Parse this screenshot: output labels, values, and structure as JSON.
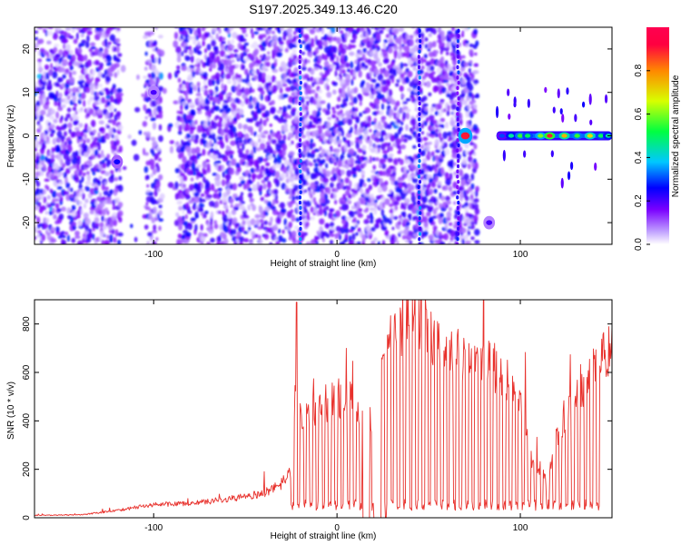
{
  "title": "S197.2025.349.13.46.C20",
  "colors": {
    "snr_line": "#e8312c",
    "frame": "#000000",
    "background": "#ffffff"
  },
  "chart_data": [
    {
      "type": "heatmap",
      "name": "spectrogram",
      "xlabel": "Height of straight line (km)",
      "ylabel": "Frequency (Hz)",
      "xlim": [
        -165,
        150
      ],
      "ylim": [
        -25,
        25
      ],
      "xticks": [
        -100,
        0,
        100
      ],
      "xtick_labels": [
        "-100",
        "0",
        "100"
      ],
      "yticks": [
        -20,
        -10,
        0,
        10,
        20
      ],
      "ytick_labels": [
        "-20",
        "-10",
        "0",
        "10",
        "20"
      ],
      "colorbar": {
        "label": "Normalized spectral amplitude",
        "range": [
          0,
          1
        ],
        "ticks": [
          0.0,
          0.2,
          0.4,
          0.6,
          0.8
        ],
        "tick_labels": [
          "0.0",
          "0.2",
          "0.4",
          "0.6",
          "0.8"
        ],
        "colormap": [
          "#ffffff",
          "#7a00ff",
          "#0000ff",
          "#00c8ff",
          "#00ff40",
          "#d8ff00",
          "#ff8800",
          "#ff0040"
        ]
      },
      "features": [
        {
          "kind": "noise",
          "x_range": [
            -165,
            75
          ],
          "f_range": [
            -25,
            25
          ],
          "level": 0.15
        },
        {
          "kind": "gap",
          "x_range": [
            -118,
            -105
          ]
        },
        {
          "kind": "gap",
          "x_range": [
            -96,
            -88
          ]
        },
        {
          "kind": "gap",
          "x_range": [
            78,
            88
          ]
        },
        {
          "kind": "vertical_streak",
          "x": -20,
          "level": 0.3
        },
        {
          "kind": "vertical_streak",
          "x": 45,
          "level": 0.3
        },
        {
          "kind": "vertical_streak",
          "x": 66,
          "level": 0.25
        },
        {
          "kind": "blob",
          "x": -120,
          "f": -6,
          "level": 0.25
        },
        {
          "kind": "blob",
          "x": -100,
          "f": 10,
          "level": 0.2
        },
        {
          "kind": "blob",
          "x": 70,
          "f": 0,
          "level": 0.9
        },
        {
          "kind": "blob",
          "x": 83,
          "f": -20,
          "level": 0.2
        },
        {
          "kind": "carrier_band",
          "x_range": [
            87,
            150
          ],
          "f": 0,
          "peaks": [
            {
              "x": 90,
              "level": 0.3
            },
            {
              "x": 95,
              "level": 0.45
            },
            {
              "x": 100,
              "level": 0.55
            },
            {
              "x": 104,
              "level": 0.5
            },
            {
              "x": 111,
              "level": 0.6
            },
            {
              "x": 116,
              "level": 0.9
            },
            {
              "x": 124,
              "level": 0.75
            },
            {
              "x": 131,
              "level": 0.55
            },
            {
              "x": 138,
              "level": 0.7
            },
            {
              "x": 144,
              "level": 0.5
            },
            {
              "x": 148,
              "level": 0.45
            }
          ]
        }
      ]
    },
    {
      "type": "line",
      "name": "snr",
      "xlabel": "Height of straight line (km)",
      "ylabel": "SNR (10 * v/v)",
      "xlim": [
        -165,
        150
      ],
      "ylim": [
        0,
        900
      ],
      "xticks": [
        -100,
        0,
        100
      ],
      "xtick_labels": [
        "-100",
        "0",
        "100"
      ],
      "yticks": [
        0,
        200,
        400,
        600,
        800
      ],
      "ytick_labels": [
        "0",
        "200",
        "400",
        "600",
        "800"
      ],
      "baseline": {
        "x": [
          -165,
          -140,
          -120,
          -100,
          -80,
          -60,
          -40,
          -30,
          -25,
          -22,
          -20,
          -10,
          0,
          10,
          15,
          20,
          25,
          30,
          40,
          50,
          60,
          70,
          80,
          90,
          100,
          105,
          110,
          115,
          120,
          130,
          140,
          150
        ],
        "y": [
          10,
          12,
          30,
          55,
          60,
          75,
          100,
          140,
          200,
          700,
          400,
          450,
          500,
          470,
          450,
          420,
          600,
          750,
          840,
          780,
          700,
          650,
          640,
          600,
          520,
          250,
          210,
          150,
          350,
          520,
          600,
          720
        ]
      },
      "dropouts": {
        "start_x": -27,
        "end_x": 145,
        "floor": 50,
        "period_km": 3.4,
        "note": "SNR repeatedly drops to near-floor levels (~50) in a comb pattern between about -27 km and 145 km"
      },
      "peak": {
        "x": -22,
        "y": 890
      }
    }
  ]
}
